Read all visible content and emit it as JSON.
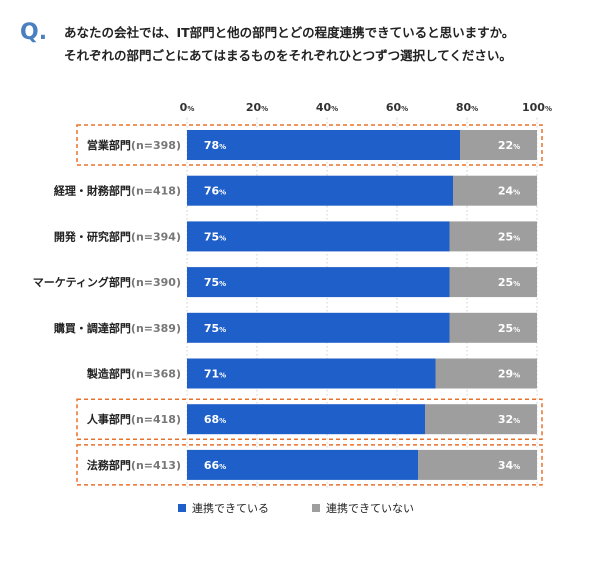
{
  "question": {
    "mark": "Q.",
    "line1": "あなたの会社では、IT部門と他の部門とどの程度連携できていると思いますか。",
    "line2": "それぞれの部門ごとにあてはまるものをそれぞれひとつずつ選択してください。"
  },
  "chart_data": {
    "type": "bar",
    "orientation": "horizontal",
    "stacked": true,
    "unit_suffix": "%",
    "xlim": [
      0,
      100
    ],
    "x_ticks": [
      {
        "value": 0,
        "label": "0"
      },
      {
        "value": 20,
        "label": "20"
      },
      {
        "value": 40,
        "label": "40"
      },
      {
        "value": 60,
        "label": "60"
      },
      {
        "value": 80,
        "label": "80"
      },
      {
        "value": 100,
        "label": "100"
      }
    ],
    "categories": [
      {
        "name": "営業部門",
        "n": "(n=398)",
        "highlight": true
      },
      {
        "name": "経理・財務部門",
        "n": "(n=418)",
        "highlight": false
      },
      {
        "name": "開発・研究部門",
        "n": "(n=394)",
        "highlight": false
      },
      {
        "name": "マーケティング部門",
        "n": "(n=390)",
        "highlight": false
      },
      {
        "name": "購買・調達部門",
        "n": "(n=389)",
        "highlight": false
      },
      {
        "name": "製造部門",
        "n": "(n=368)",
        "highlight": false
      },
      {
        "name": "人事部門",
        "n": "(n=418)",
        "highlight": true
      },
      {
        "name": "法務部門",
        "n": "(n=413)",
        "highlight": true
      }
    ],
    "series": [
      {
        "name": "連携できている",
        "color": "#1f5fc9",
        "values": [
          78,
          76,
          75,
          75,
          75,
          71,
          68,
          66
        ]
      },
      {
        "name": "連携できていない",
        "color": "#9e9e9e",
        "values": [
          22,
          24,
          25,
          25,
          25,
          29,
          32,
          34
        ]
      }
    ],
    "highlight_color": "#e8722b",
    "gridlines": "dotted",
    "legend_position": "bottom"
  }
}
